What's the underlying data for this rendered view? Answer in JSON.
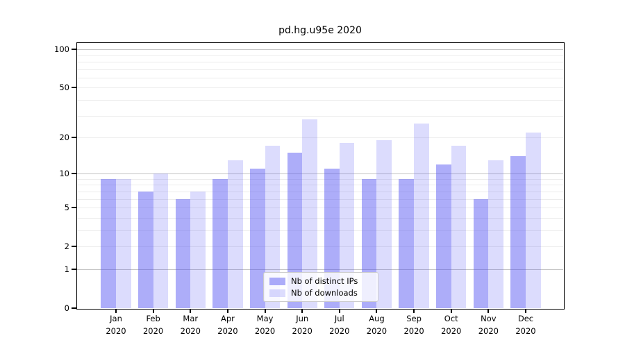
{
  "page": {
    "background": "#ffffff"
  },
  "chart_data": {
    "type": "bar",
    "title": "pd.hg.u95e 2020",
    "categories": [
      "Jan 2020",
      "Feb 2020",
      "Mar 2020",
      "Apr 2020",
      "May 2020",
      "Jun 2020",
      "Jul 2020",
      "Aug 2020",
      "Sep 2020",
      "Oct 2020",
      "Nov 2020",
      "Dec 2020"
    ],
    "series": [
      {
        "name": "Nb of distinct IPs",
        "values": [
          9,
          7,
          6,
          9,
          11,
          15,
          11,
          9,
          9,
          12,
          6,
          14
        ],
        "color": "rgba(80,80,243,0.47)",
        "color_on_white": "#a9a9f7"
      },
      {
        "name": "Nb of downloads",
        "values": [
          9,
          10,
          7,
          13,
          17,
          28,
          18,
          19,
          26,
          17,
          13,
          22
        ],
        "color": "rgba(80,80,243,0.20)",
        "color_on_white": "#dcdcfb"
      }
    ],
    "xlabel": "",
    "ylabel": "",
    "yscale": "log1p",
    "ylim": [
      0,
      112
    ],
    "yticks": [
      0,
      1,
      2,
      5,
      10,
      20,
      50,
      100
    ],
    "major_gridlines": [
      1,
      10,
      100
    ],
    "minor_gridlines": [
      2,
      3,
      4,
      5,
      6,
      7,
      8,
      9,
      20,
      30,
      40,
      50,
      60,
      70,
      80,
      90
    ],
    "grid": true,
    "legend": {
      "position": "lower center",
      "items": [
        "Nb of distinct IPs",
        "Nb of downloads"
      ]
    },
    "colors": {
      "axis": "#000000",
      "major_grid": "#c3c3c3",
      "minor_grid": "#ececec",
      "tick_label": "#000000",
      "legend_border": "#cccccc"
    }
  }
}
